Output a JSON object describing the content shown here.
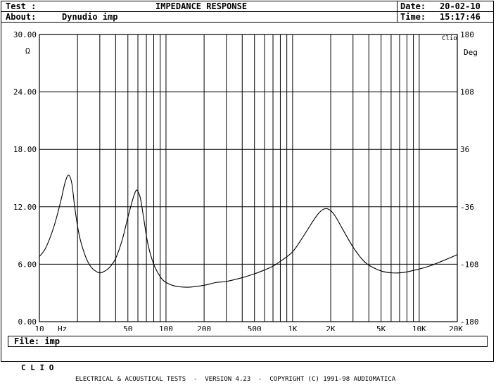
{
  "header": {
    "test_label": "Test :",
    "title": "IMPEDANCE RESPONSE",
    "date_label": "Date:",
    "date_value": "20-02-10",
    "about_label": "About:",
    "about_value": "Dynudio imp",
    "time_label": "Time:",
    "time_value": "15:17:46"
  },
  "file_bar": {
    "label": "File:",
    "value": "imp"
  },
  "footer": {
    "brand": "C L I O",
    "text": "ELECTRICAL & ACOUSTICAL TESTS  -  VERSION 4.23  -  COPYRIGHT (C) 1991-98 AUDIOMATICA"
  },
  "chart_data": {
    "type": "line",
    "xscale": "log",
    "xlim": [
      10,
      20000
    ],
    "ylim": [
      0,
      30
    ],
    "y2lim": [
      -180,
      180
    ],
    "grid": true,
    "left_unit": "Ω",
    "right_unit": "Deg",
    "x_unit": "Hz",
    "badge": "Clio",
    "x_ticks": [
      {
        "value": 10,
        "label": "10"
      },
      {
        "value": 50,
        "label": "50"
      },
      {
        "value": 100,
        "label": "100"
      },
      {
        "value": 200,
        "label": "200"
      },
      {
        "value": 500,
        "label": "500"
      },
      {
        "value": 1000,
        "label": "1K"
      },
      {
        "value": 2000,
        "label": "2K"
      },
      {
        "value": 5000,
        "label": "5K"
      },
      {
        "value": 10000,
        "label": "10K"
      },
      {
        "value": 20000,
        "label": "20K"
      }
    ],
    "y_ticks": [
      {
        "value": 0,
        "label": "0.00"
      },
      {
        "value": 6,
        "label": "6.00"
      },
      {
        "value": 12,
        "label": "12.00"
      },
      {
        "value": 18,
        "label": "18.00"
      },
      {
        "value": 24,
        "label": "24.00"
      },
      {
        "value": 30,
        "label": "30.00"
      }
    ],
    "y2_ticks": [
      {
        "value": -180,
        "label": "-180"
      },
      {
        "value": -108,
        "label": "-108"
      },
      {
        "value": -36,
        "label": "-36"
      },
      {
        "value": 36,
        "label": "36"
      },
      {
        "value": 108,
        "label": "108"
      },
      {
        "value": 180,
        "label": "180"
      }
    ],
    "series": [
      {
        "color": "#000000",
        "points": [
          [
            10,
            6.8
          ],
          [
            11,
            7.5
          ],
          [
            12,
            8.6
          ],
          [
            13,
            9.9
          ],
          [
            14,
            11.4
          ],
          [
            15,
            13.0
          ],
          [
            16,
            14.6
          ],
          [
            17,
            15.3
          ],
          [
            18,
            14.5
          ],
          [
            19,
            12.0
          ],
          [
            20,
            10.0
          ],
          [
            21,
            8.6
          ],
          [
            23,
            6.9
          ],
          [
            25,
            5.9
          ],
          [
            27,
            5.4
          ],
          [
            30,
            5.1
          ],
          [
            33,
            5.3
          ],
          [
            36,
            5.7
          ],
          [
            40,
            6.6
          ],
          [
            45,
            8.5
          ],
          [
            50,
            10.9
          ],
          [
            55,
            12.9
          ],
          [
            58,
            13.7
          ],
          [
            60,
            13.6
          ],
          [
            63,
            12.8
          ],
          [
            67,
            10.6
          ],
          [
            72,
            8.1
          ],
          [
            80,
            6.0
          ],
          [
            90,
            4.7
          ],
          [
            100,
            4.1
          ],
          [
            120,
            3.7
          ],
          [
            150,
            3.6
          ],
          [
            200,
            3.8
          ],
          [
            250,
            4.1
          ],
          [
            300,
            4.2
          ],
          [
            400,
            4.6
          ],
          [
            500,
            5.0
          ],
          [
            600,
            5.4
          ],
          [
            700,
            5.8
          ],
          [
            800,
            6.3
          ],
          [
            1000,
            7.3
          ],
          [
            1200,
            8.8
          ],
          [
            1400,
            10.2
          ],
          [
            1600,
            11.3
          ],
          [
            1800,
            11.8
          ],
          [
            2000,
            11.6
          ],
          [
            2200,
            10.9
          ],
          [
            2500,
            9.6
          ],
          [
            3000,
            7.8
          ],
          [
            3500,
            6.6
          ],
          [
            4000,
            5.9
          ],
          [
            5000,
            5.3
          ],
          [
            6000,
            5.1
          ],
          [
            7000,
            5.1
          ],
          [
            8000,
            5.2
          ],
          [
            10000,
            5.5
          ],
          [
            12000,
            5.8
          ],
          [
            15000,
            6.3
          ],
          [
            20000,
            7.0
          ]
        ]
      }
    ]
  }
}
